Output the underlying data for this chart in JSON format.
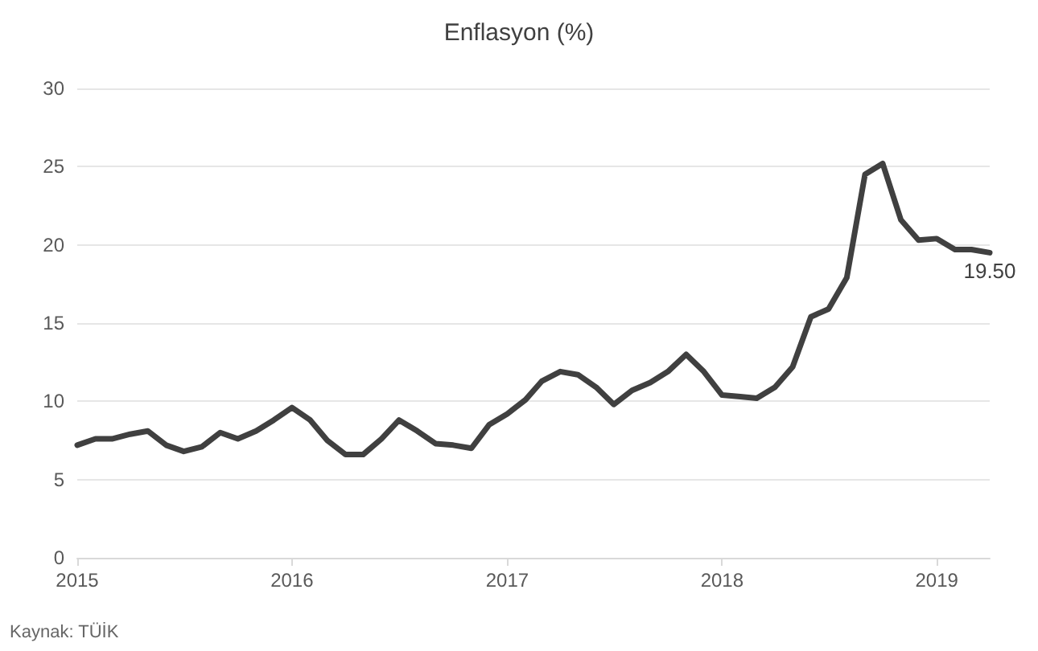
{
  "chart_data": {
    "type": "line",
    "title": "Enflasyon (%)",
    "x": [
      "2015-01",
      "2015-02",
      "2015-03",
      "2015-04",
      "2015-05",
      "2015-06",
      "2015-07",
      "2015-08",
      "2015-09",
      "2015-10",
      "2015-11",
      "2015-12",
      "2016-01",
      "2016-02",
      "2016-03",
      "2016-04",
      "2016-05",
      "2016-06",
      "2016-07",
      "2016-08",
      "2016-09",
      "2016-10",
      "2016-11",
      "2016-12",
      "2017-01",
      "2017-02",
      "2017-03",
      "2017-04",
      "2017-05",
      "2017-06",
      "2017-07",
      "2017-08",
      "2017-09",
      "2017-10",
      "2017-11",
      "2017-12",
      "2018-01",
      "2018-02",
      "2018-03",
      "2018-04",
      "2018-05",
      "2018-06",
      "2018-07",
      "2018-08",
      "2018-09",
      "2018-10",
      "2018-11",
      "2018-12",
      "2019-01",
      "2019-02",
      "2019-03",
      "2019-04"
    ],
    "series": [
      {
        "color": "#404040",
        "values": [
          7.2,
          7.6,
          7.6,
          7.9,
          8.1,
          7.2,
          6.8,
          7.1,
          8.0,
          7.6,
          8.1,
          8.8,
          9.6,
          8.8,
          7.5,
          6.6,
          6.6,
          7.6,
          8.8,
          8.1,
          7.3,
          7.2,
          7.0,
          8.5,
          9.2,
          10.1,
          11.3,
          11.9,
          11.7,
          10.9,
          9.8,
          10.7,
          11.2,
          11.9,
          13.0,
          11.9,
          10.4,
          10.3,
          10.2,
          10.9,
          12.2,
          15.4,
          15.9,
          17.9,
          24.5,
          25.2,
          21.6,
          20.3,
          20.4,
          19.7,
          19.7,
          19.5
        ],
        "value_labels": [
          null,
          null,
          null,
          null,
          null,
          null,
          null,
          null,
          null,
          null,
          null,
          null,
          null,
          null,
          null,
          null,
          null,
          null,
          null,
          null,
          null,
          null,
          null,
          null,
          null,
          null,
          null,
          null,
          null,
          null,
          null,
          null,
          null,
          null,
          null,
          null,
          null,
          null,
          null,
          null,
          null,
          null,
          null,
          null,
          null,
          null,
          null,
          null,
          null,
          null,
          null,
          "19.50"
        ]
      }
    ],
    "xlim": [
      "2015-01",
      "2019-04"
    ],
    "xticks": [
      {
        "value": "2015-01",
        "label": "2015"
      },
      {
        "value": "2016-01",
        "label": "2016"
      },
      {
        "value": "2017-01",
        "label": "2017"
      },
      {
        "value": "2018-01",
        "label": "2018"
      },
      {
        "value": "2019-01",
        "label": "2019"
      }
    ],
    "ylim": [
      0,
      30
    ],
    "yticks": [
      0,
      5,
      10,
      15,
      20,
      25,
      30
    ],
    "grid": "y",
    "marker": "none",
    "line_style": "solid",
    "annotations": [
      "Kaynak: TÜİK"
    ]
  }
}
